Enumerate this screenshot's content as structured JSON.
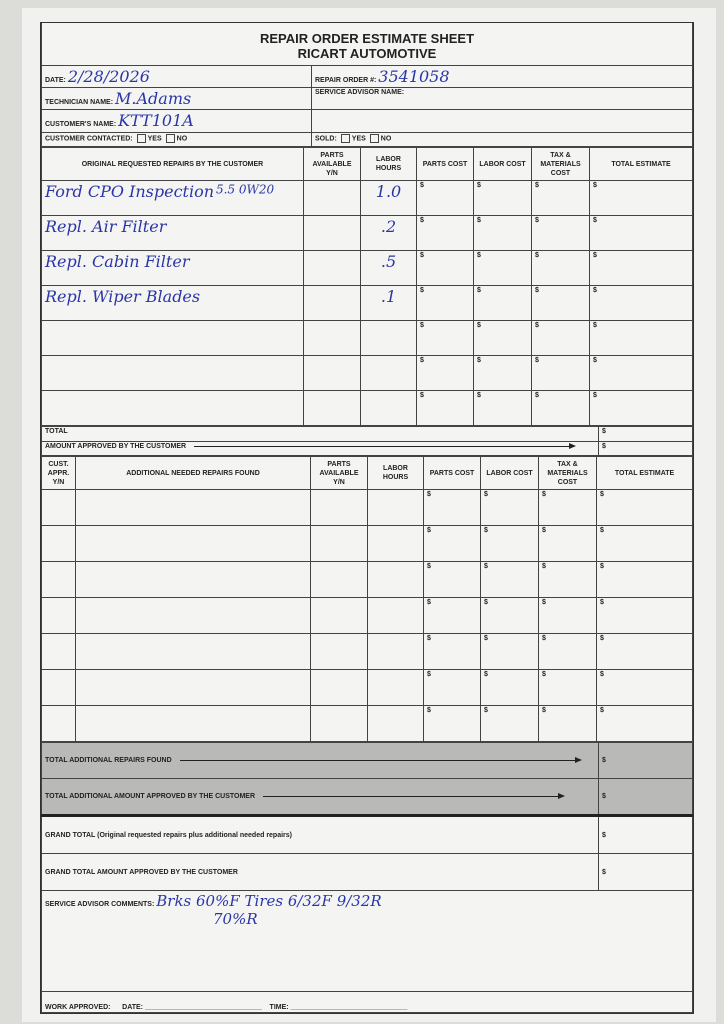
{
  "form": {
    "title": "REPAIR ORDER ESTIMATE SHEET",
    "company": "RICART AUTOMOTIVE"
  },
  "header": {
    "date_label": "DATE:",
    "date": "2/28/2026",
    "ro_label": "REPAIR ORDER #:",
    "ro": "3541058",
    "tech_label": "TECHNICIAN NAME:",
    "tech": "M.Adams",
    "advisor_label": "SERVICE ADVISOR NAME:",
    "customer_label": "CUSTOMER'S NAME:",
    "customer": "KTT101A",
    "contacted_label": "CUSTOMER CONTACTED:",
    "sold_label": "SOLD:",
    "yes": "YES",
    "no": "NO"
  },
  "columns": {
    "original": "ORIGINAL REQUESTED REPAIRS BY THE CUSTOMER",
    "additional": "ADDITIONAL NEEDED REPAIRS FOUND",
    "cust_appr": "CUST. APPR. Y/N",
    "parts_avail": "PARTS AVAILABLE Y/N",
    "labor_hours": "LABOR HOURS",
    "parts_cost": "PARTS COST",
    "labor_cost": "LABOR COST",
    "tax": "TAX & MATERIALS COST",
    "total": "TOTAL ESTIMATE",
    "dollar": "$"
  },
  "original_repairs": [
    {
      "desc": "Ford CPO Inspection",
      "note": "5.5 0W20",
      "hours": "1.0"
    },
    {
      "desc": "Repl. Air Filter",
      "note": "",
      "hours": ".2"
    },
    {
      "desc": "Repl. Cabin Filter",
      "note": "",
      "hours": ".5"
    },
    {
      "desc": "Repl. Wiper Blades",
      "note": "",
      "hours": ".1"
    },
    {
      "desc": "",
      "note": "",
      "hours": ""
    },
    {
      "desc": "",
      "note": "",
      "hours": ""
    },
    {
      "desc": "",
      "note": "",
      "hours": ""
    }
  ],
  "totals": {
    "total": "TOTAL",
    "approved": "AMOUNT APPROVED BY THE CUSTOMER",
    "total_additional": "TOTAL ADDITIONAL REPAIRS FOUND",
    "additional_approved": "TOTAL ADDITIONAL AMOUNT APPROVED BY THE CUSTOMER",
    "grand_total": "GRAND TOTAL (Original requested repairs plus additional needed repairs)",
    "grand_approved": "GRAND TOTAL AMOUNT APPROVED BY THE CUSTOMER"
  },
  "comments": {
    "label": "SERVICE ADVISOR COMMENTS:",
    "line1": "Brks 60%F   Tires 6/32F 9/32R",
    "line2": "70%R"
  },
  "footer": {
    "work_approved": "WORK APPROVED:",
    "date": "DATE:",
    "time": "TIME:"
  }
}
